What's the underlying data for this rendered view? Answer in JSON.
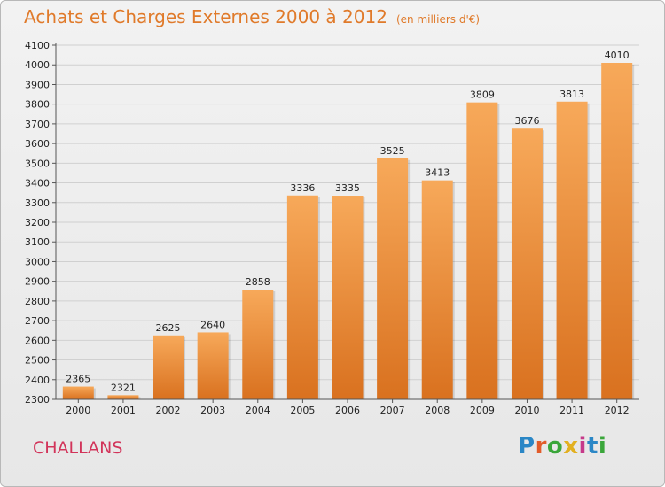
{
  "title": "Achats et Charges Externes 2000 à 2012",
  "subtitle": "(en milliers d'€)",
  "place": "CHALLANS",
  "logo": {
    "letters": [
      "P",
      "r",
      "o",
      "x",
      "i",
      "t",
      "i"
    ],
    "colors": [
      "#2b87c6",
      "#e25c2a",
      "#3aa63a",
      "#e2b020",
      "#c63a8a",
      "#2b87c6",
      "#3aa63a"
    ]
  },
  "colors": {
    "bar_top": "#f7a95a",
    "bar_bottom": "#d9711f",
    "title": "#e07a2a",
    "place": "#d2345a"
  },
  "chart_data": {
    "type": "bar",
    "title": "Achats et Charges Externes 2000 à 2012",
    "subtitle": "(en milliers d'€)",
    "xlabel": "",
    "ylabel": "",
    "categories": [
      "2000",
      "2001",
      "2002",
      "2003",
      "2004",
      "2005",
      "2006",
      "2007",
      "2008",
      "2009",
      "2010",
      "2011",
      "2012"
    ],
    "values": [
      2365,
      2321,
      2625,
      2640,
      2858,
      3336,
      3335,
      3525,
      3413,
      3809,
      3676,
      3813,
      4010
    ],
    "ylim": [
      2300,
      4100
    ],
    "ytick_step": 100,
    "grid": true,
    "legend": "none"
  }
}
